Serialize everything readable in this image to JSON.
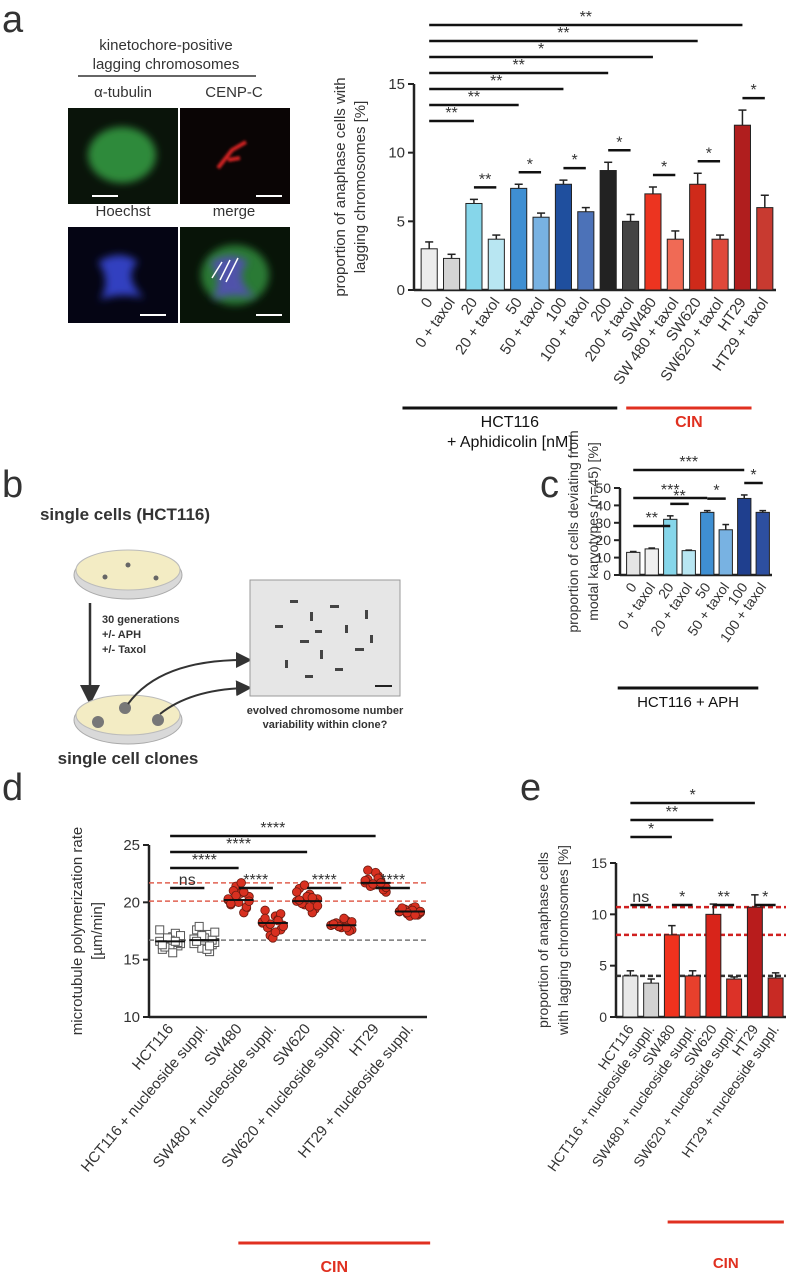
{
  "figure": {
    "panel_labels": [
      "a",
      "b",
      "c",
      "d",
      "e"
    ],
    "images": {
      "title": [
        "kinetochore-positive",
        "lagging chromosomes"
      ],
      "labels": [
        "α-tubulin",
        "CENP-C",
        "Hoechst",
        "merge"
      ]
    },
    "diagram": {
      "top": "single cells (HCT116)",
      "treatment": [
        "30 generations",
        "+/- APH",
        "+/- Taxol"
      ],
      "bottom": "single cell clones",
      "question": [
        "evolved chromosome number",
        "variability within clone?"
      ]
    }
  },
  "chart_data": [
    {
      "type": "bar",
      "ylabel": [
        "proportion of anaphase cells with",
        "lagging chromosomes [%]"
      ],
      "categories": [
        "0",
        "0 + taxol",
        "20",
        "20 + taxol",
        "50",
        "50 + taxol",
        "100",
        "100 + taxol",
        "200",
        "200 + taxol",
        "SW480",
        "SW 480 + taxol",
        "SW620",
        "SW620 + taxol",
        "HT29",
        "HT29 + taxol"
      ],
      "values": [
        3.0,
        2.3,
        6.3,
        3.7,
        7.4,
        5.3,
        7.7,
        5.7,
        8.7,
        5.0,
        7.0,
        3.7,
        7.7,
        3.7,
        12.0,
        6.0
      ],
      "errors": [
        0.5,
        0.3,
        0.3,
        0.3,
        0.3,
        0.3,
        0.3,
        0.3,
        0.6,
        0.5,
        0.5,
        0.6,
        0.8,
        0.3,
        1.1,
        0.9
      ],
      "colors": [
        "#ececec",
        "#d4d4d4",
        "#86d6ea",
        "#b8e6f2",
        "#3f8fd2",
        "#78b2e2",
        "#1f4f9e",
        "#4c72b8",
        "#222222",
        "#444444",
        "#ec3420",
        "#f06a55",
        "#cf2a1a",
        "#e0483a",
        "#b01e1e",
        "#c83a30"
      ],
      "ylim": [
        0,
        15
      ],
      "yticks": [
        0,
        5,
        10,
        15
      ],
      "annotations": [
        {
          "text": "**",
          "compare": [
            "0",
            "HT29"
          ]
        },
        {
          "text": "**",
          "compare": [
            "0",
            "SW620"
          ]
        },
        {
          "text": "*",
          "compare": [
            "0",
            "SW480"
          ]
        },
        {
          "text": "**",
          "compare": [
            "0",
            "200"
          ]
        },
        {
          "text": "**",
          "compare": [
            "0",
            "100"
          ]
        },
        {
          "text": "**",
          "compare": [
            "0",
            "50"
          ]
        },
        {
          "text": "**",
          "compare": [
            "0",
            "20"
          ]
        },
        {
          "text": "**",
          "compare": [
            "20",
            "20 + taxol"
          ]
        },
        {
          "text": "*",
          "compare": [
            "50",
            "50 + taxol"
          ]
        },
        {
          "text": "*",
          "compare": [
            "100",
            "100 + taxol"
          ]
        },
        {
          "text": "*",
          "compare": [
            "200",
            "200 + taxol"
          ]
        },
        {
          "text": "*",
          "compare": [
            "SW480",
            "SW 480 + taxol"
          ]
        },
        {
          "text": "*",
          "compare": [
            "SW620",
            "SW620 + taxol"
          ]
        },
        {
          "text": "*",
          "compare": [
            "HT29",
            "HT29 + taxol"
          ]
        }
      ],
      "groups": [
        {
          "label": [
            "HCT116",
            "+ Aphidicolin [nM]"
          ],
          "span": [
            "0",
            "200 + taxol"
          ],
          "color": "#111111"
        },
        {
          "label": [
            "CIN"
          ],
          "span": [
            "SW480",
            "HT29 + taxol"
          ],
          "color": "#e03020"
        }
      ]
    },
    {
      "type": "bar",
      "ylabel": [
        "proportion of cells deviating from",
        "modal karyotypes (n=45)  [%]"
      ],
      "categories": [
        "0",
        "0 + taxol",
        "20",
        "20 + taxol",
        "50",
        "50 + taxol",
        "100",
        "100 + taxol"
      ],
      "values": [
        13,
        15,
        32,
        14,
        36,
        26,
        44,
        36
      ],
      "errors": [
        0.5,
        0.5,
        2,
        0.3,
        1,
        3,
        2,
        1
      ],
      "colors": [
        "#e4e4e4",
        "#f0f0f0",
        "#86d6ea",
        "#b8e6f2",
        "#3f8fd2",
        "#78b2e2",
        "#1f3f8e",
        "#2d4fa0"
      ],
      "ylim": [
        0,
        50
      ],
      "yticks": [
        0,
        10,
        20,
        30,
        40,
        50
      ],
      "annotations": [
        {
          "text": "***",
          "compare": [
            "0",
            "100"
          ]
        },
        {
          "text": "***",
          "compare": [
            "0",
            "50"
          ]
        },
        {
          "text": "**",
          "compare": [
            "0",
            "20"
          ]
        },
        {
          "text": "**",
          "compare": [
            "20",
            "20 + taxol"
          ]
        },
        {
          "text": "*",
          "compare": [
            "50",
            "50 + taxol"
          ]
        },
        {
          "text": "*",
          "compare": [
            "100",
            "100 + taxol"
          ]
        }
      ],
      "groups": [
        {
          "label": [
            "HCT116 + APH"
          ],
          "span": [
            "0",
            "100 + taxol"
          ],
          "color": "#111111"
        }
      ]
    },
    {
      "type": "dotplot",
      "ylabel": [
        "microtubule polymerization rate",
        "[µm/min]"
      ],
      "categories": [
        "HCT116",
        "HCT116 + nucleoside suppl.",
        "SW480",
        "SW480 + nucleoside suppl.",
        "SW620",
        "SW620 + nucleoside suppl.",
        "HT29",
        "HT29 + nucleoside suppl."
      ],
      "points": [
        [
          16.6,
          16.2,
          17.0,
          16.8,
          15.9,
          16.4,
          17.3,
          16.7,
          16.1,
          17.6,
          16.5,
          15.6,
          16.9,
          16.3,
          17.1,
          16.6
        ],
        [
          16.8,
          16.3,
          17.2,
          16.0,
          17.6,
          16.5,
          15.7,
          16.9,
          17.9,
          16.4,
          16.7,
          15.9,
          17.1,
          16.6,
          17.4,
          16.2
        ],
        [
          20.2,
          19.5,
          20.8,
          21.4,
          19.8,
          20.5,
          19.1,
          20.0,
          21.0,
          20.3,
          19.6,
          21.7,
          20.6,
          19.9,
          20.1,
          20.9
        ],
        [
          18.2,
          17.6,
          18.8,
          17.1,
          19.3,
          18.0,
          18.5,
          16.9,
          17.8,
          18.3,
          19.0,
          17.4,
          18.1,
          18.6,
          17.9,
          18.4
        ],
        [
          20.1,
          19.4,
          20.7,
          19.8,
          21.2,
          20.3,
          19.1,
          20.5,
          19.9,
          20.9,
          20.0,
          19.6,
          21.5,
          20.2,
          19.7,
          20.4
        ],
        [
          18.0,
          17.7,
          18.3,
          17.9,
          18.1,
          17.6,
          18.4,
          17.8,
          18.2,
          18.0,
          17.5,
          18.6,
          17.9,
          18.1,
          18.3,
          17.8
        ],
        [
          21.7,
          21.2,
          22.3,
          21.5,
          22.0,
          20.9,
          21.8,
          22.6,
          21.4,
          21.9,
          21.1,
          22.1,
          21.6,
          22.8,
          21.3,
          21.7
        ],
        [
          19.2,
          18.9,
          19.5,
          19.0,
          19.3,
          19.1,
          19.6,
          18.8,
          19.4,
          19.2,
          19.0,
          19.3,
          19.1,
          19.5,
          19.2,
          18.9
        ]
      ],
      "means": [
        16.6,
        16.7,
        20.2,
        18.2,
        20.1,
        18.0,
        21.7,
        19.2
      ],
      "colors": [
        "#ffffff",
        "#ffffff",
        "#d83020",
        "#d83020",
        "#d83020",
        "#d83020",
        "#d83020",
        "#d83020"
      ],
      "markers": [
        "square",
        "square",
        "circle",
        "circle",
        "circle",
        "circle",
        "circle",
        "circle"
      ],
      "reference_lines": [
        {
          "value": 21.7,
          "color": "#e06050"
        },
        {
          "value": 20.1,
          "color": "#e06050"
        },
        {
          "value": 16.7,
          "color": "#777777"
        }
      ],
      "ylim": [
        10,
        25
      ],
      "yticks": [
        10,
        15,
        20,
        25
      ],
      "annotations": [
        {
          "text": "****",
          "compare": [
            "HCT116",
            "HT29"
          ]
        },
        {
          "text": "****",
          "compare": [
            "HCT116",
            "SW620"
          ]
        },
        {
          "text": "****",
          "compare": [
            "HCT116",
            "SW480"
          ]
        },
        {
          "text": "ns",
          "compare": [
            "HCT116",
            "HCT116 + nucleoside suppl."
          ]
        },
        {
          "text": "****",
          "compare": [
            "SW480",
            "SW480 + nucleoside suppl."
          ]
        },
        {
          "text": "****",
          "compare": [
            "SW620",
            "SW620 + nucleoside suppl."
          ]
        },
        {
          "text": "****",
          "compare": [
            "HT29",
            "HT29 + nucleoside suppl."
          ]
        }
      ],
      "groups": [
        {
          "label": [
            "CIN"
          ],
          "span": [
            "SW480",
            "HT29 + nucleoside suppl."
          ],
          "color": "#e03020"
        }
      ]
    },
    {
      "type": "bar",
      "ylabel": [
        "proportion of anaphase cells",
        "with lagging chromosomes [%]"
      ],
      "categories": [
        "HCT116",
        "HCT116 + nucleoside suppl.",
        "SW480",
        "SW480 + nucleoside suppl.",
        "SW620",
        "SW620 + nucleoside suppl.",
        "HT29",
        "HT29 + nucleoside suppl."
      ],
      "values": [
        4.0,
        3.3,
        8.0,
        4.0,
        10.0,
        3.7,
        10.7,
        3.8
      ],
      "errors": [
        0.5,
        0.4,
        0.9,
        0.5,
        1.0,
        0.2,
        1.2,
        0.5
      ],
      "colors": [
        "#e8e8e8",
        "#d2d2d2",
        "#f0321e",
        "#e8402c",
        "#d8241a",
        "#dc3228",
        "#b81c1c",
        "#c82a24"
      ],
      "reference_lines": [
        {
          "value": 10.7,
          "color": "#d02020"
        },
        {
          "value": 8.0,
          "color": "#d02020"
        },
        {
          "value": 4.0,
          "color": "#333333"
        }
      ],
      "ylim": [
        0,
        15
      ],
      "yticks": [
        0,
        5,
        10,
        15
      ],
      "annotations": [
        {
          "text": "*",
          "compare": [
            "HCT116",
            "HT29"
          ]
        },
        {
          "text": "**",
          "compare": [
            "HCT116",
            "SW620"
          ]
        },
        {
          "text": "*",
          "compare": [
            "HCT116",
            "SW480"
          ]
        },
        {
          "text": "ns",
          "compare": [
            "HCT116",
            "HCT116 + nucleoside suppl."
          ]
        },
        {
          "text": "*",
          "compare": [
            "SW480",
            "SW480 + nucleoside suppl."
          ]
        },
        {
          "text": "**",
          "compare": [
            "SW620",
            "SW620 + nucleoside suppl."
          ]
        },
        {
          "text": "*",
          "compare": [
            "HT29",
            "HT29 + nucleoside suppl."
          ]
        }
      ],
      "groups": [
        {
          "label": [
            "CIN"
          ],
          "span": [
            "SW480",
            "HT29 + nucleoside suppl."
          ],
          "color": "#e03020"
        }
      ]
    }
  ]
}
